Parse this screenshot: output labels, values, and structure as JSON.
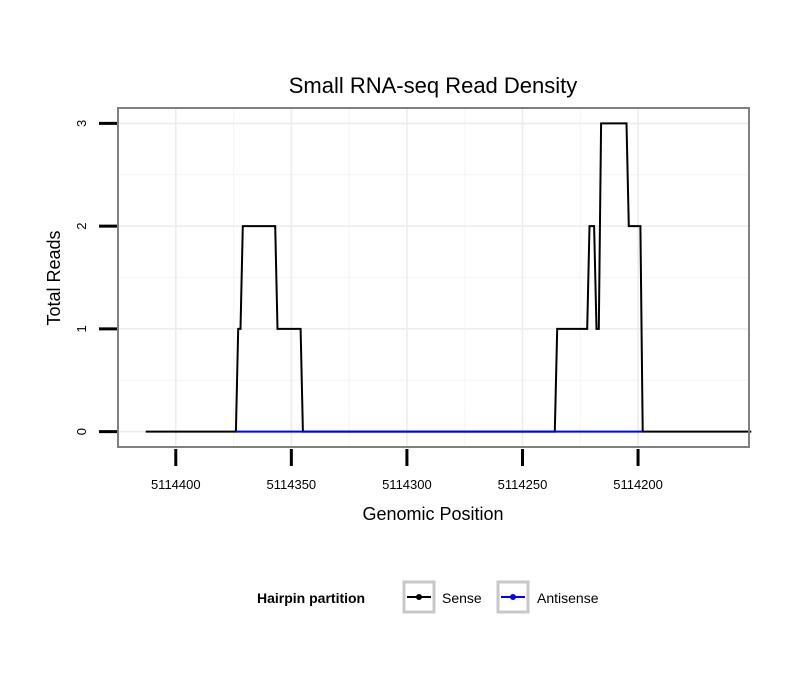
{
  "chart_data": {
    "type": "line",
    "title": "Small RNA-seq Read Density",
    "xlabel": "Genomic Position",
    "ylabel": "Total Reads",
    "xlim": [
      5114425,
      5114152
    ],
    "x_reversed": true,
    "ylim": [
      -0.15,
      3.15
    ],
    "x_ticks": [
      5114400,
      5114350,
      5114300,
      5114250,
      5114200
    ],
    "x_tick_labels": [
      "5114400",
      "5114350",
      "5114300",
      "5114250",
      "5114200"
    ],
    "y_ticks": [
      0,
      1,
      2,
      3
    ],
    "y_tick_labels": [
      "0",
      "1",
      "2",
      "3"
    ],
    "grid": true,
    "legend": {
      "title": "Hairpin partition",
      "position": "bottom",
      "entries": [
        "Sense",
        "Antisense"
      ]
    },
    "series": [
      {
        "name": "Sense",
        "color": "#000000",
        "x": [
          5114413,
          5114374,
          5114373,
          5114372,
          5114371,
          5114357,
          5114356,
          5114346,
          5114345,
          5114236,
          5114235,
          5114222,
          5114221,
          5114219,
          5114218,
          5114217,
          5114216,
          5114205,
          5114204,
          5114199,
          5114198,
          5114151
        ],
        "values": [
          0,
          0,
          1,
          1,
          2,
          2,
          1,
          1,
          0,
          0,
          1,
          1,
          2,
          2,
          1,
          1,
          3,
          3,
          2,
          2,
          0,
          0
        ]
      },
      {
        "name": "Antisense",
        "color": "#0000ff",
        "x": [
          5114374,
          5114345,
          5114236,
          5114198
        ],
        "values": [
          0,
          0,
          0,
          0
        ]
      }
    ]
  }
}
